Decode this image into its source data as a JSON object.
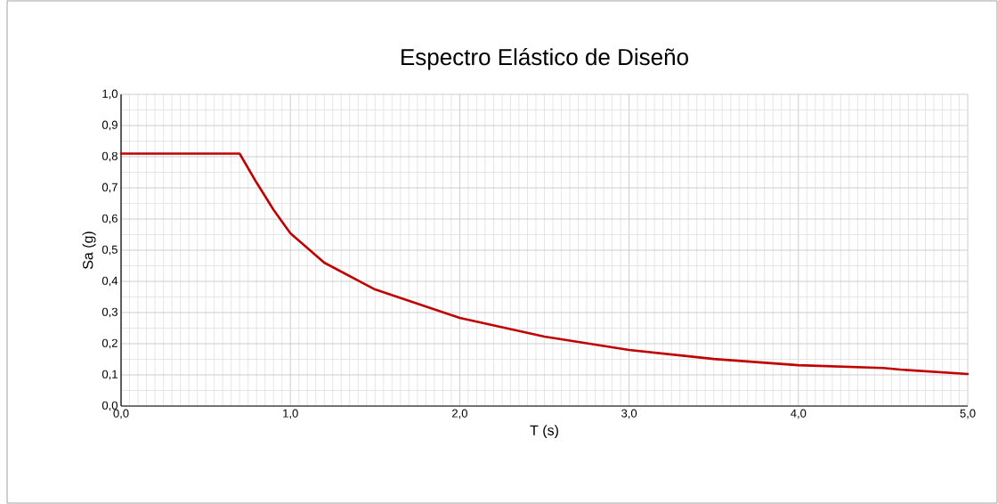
{
  "chart_data": {
    "type": "line",
    "title": "Espectro Elástico de Diseño",
    "xlabel": "T (s)",
    "ylabel": "Sa (g)",
    "x": [
      0,
      0.7,
      0.8,
      0.9,
      1.0,
      1.2,
      1.5,
      2.0,
      2.5,
      3.0,
      3.5,
      4.0,
      4.5,
      4.6,
      5.0
    ],
    "series": [
      {
        "color": "#c00000",
        "values": [
          0.81,
          0.81,
          0.717,
          0.63,
          0.554,
          0.46,
          0.374,
          0.283,
          0.223,
          0.18,
          0.151,
          0.131,
          0.122,
          0.117,
          0.103
        ]
      }
    ],
    "xlim": [
      0,
      5
    ],
    "ylim": [
      0,
      1
    ],
    "xticks": [
      {
        "value": 0,
        "label": "0,0"
      },
      {
        "value": 1,
        "label": "1,0"
      },
      {
        "value": 2,
        "label": "2,0"
      },
      {
        "value": 3,
        "label": "3,0"
      },
      {
        "value": 4,
        "label": "4,0"
      },
      {
        "value": 5,
        "label": "5,0"
      }
    ],
    "yticks": [
      {
        "value": 0,
        "label": "0,0"
      },
      {
        "value": 0.1,
        "label": "0,1"
      },
      {
        "value": 0.2,
        "label": "0,2"
      },
      {
        "value": 0.3,
        "label": "0,3"
      },
      {
        "value": 0.4,
        "label": "0,4"
      },
      {
        "value": 0.5,
        "label": "0,5"
      },
      {
        "value": 0.6,
        "label": "0,6"
      },
      {
        "value": 0.7,
        "label": "0,7"
      },
      {
        "value": 0.8,
        "label": "0,8"
      },
      {
        "value": 0.9,
        "label": "0,9"
      },
      {
        "value": 1.0,
        "label": "1,0"
      }
    ],
    "grid": true,
    "legend": false,
    "marker": "none",
    "line_style": "solid"
  }
}
